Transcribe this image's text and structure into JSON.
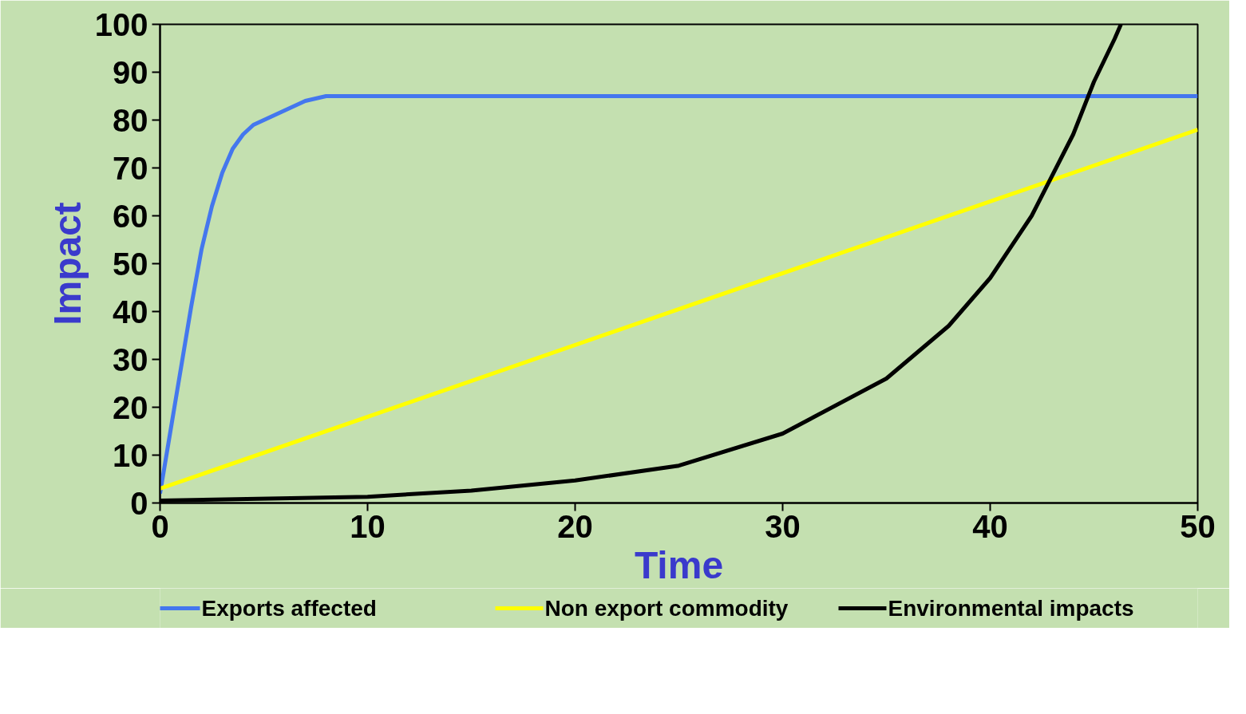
{
  "chart_data": {
    "type": "line",
    "xlabel": "Time",
    "ylabel": "Impact",
    "xlim": [
      0,
      50
    ],
    "ylim": [
      0,
      100
    ],
    "xticks": [
      0,
      10,
      20,
      30,
      40,
      50
    ],
    "yticks": [
      0,
      10,
      20,
      30,
      40,
      50,
      60,
      70,
      80,
      90,
      100
    ],
    "grid": false,
    "legend": "bottom",
    "line_style": "solid",
    "marker": "none",
    "series": [
      {
        "name": "Exports affected",
        "color": "#4477ee",
        "x": [
          0,
          0.5,
          1,
          1.5,
          2,
          2.5,
          3,
          3.5,
          4,
          4.5,
          5,
          6,
          7,
          8,
          9,
          10,
          50
        ],
        "values": [
          2,
          15,
          28,
          41,
          53,
          62,
          69,
          74,
          77,
          79,
          80,
          82,
          84,
          85,
          85,
          85,
          85
        ]
      },
      {
        "name": "Non export commodity",
        "color": "#ffff00",
        "x": [
          0,
          50
        ],
        "values": [
          3,
          78
        ]
      },
      {
        "name": "Environmental impacts",
        "color": "#000000",
        "x": [
          0,
          10,
          15,
          20,
          25,
          30,
          35,
          38,
          40,
          42,
          44,
          45,
          46,
          46.3
        ],
        "values": [
          0.5,
          1.3,
          2.6,
          4.7,
          7.8,
          14.5,
          26,
          37,
          47,
          60,
          77,
          88,
          97,
          100
        ]
      }
    ]
  }
}
